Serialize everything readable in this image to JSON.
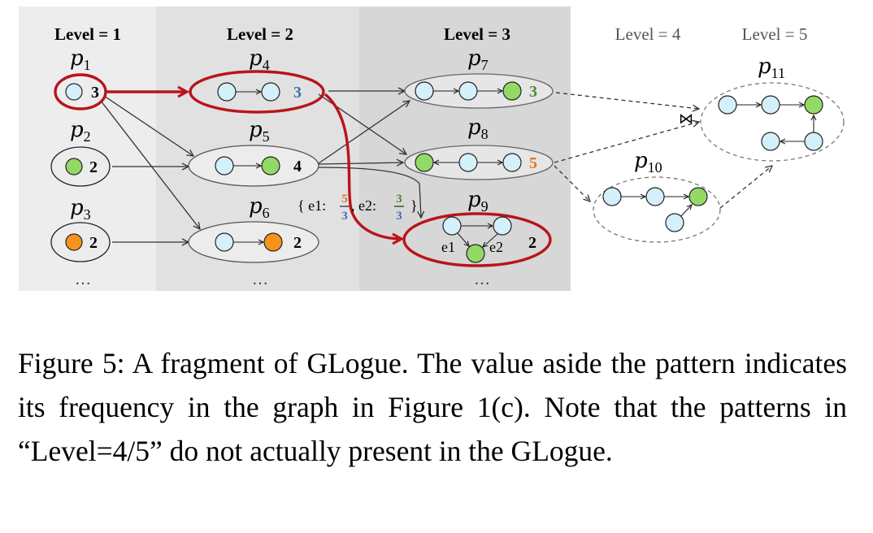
{
  "levels": [
    "Level = 1",
    "Level = 2",
    "Level = 3",
    "Level = 4",
    "Level = 5"
  ],
  "patterns": {
    "p1": {
      "name": "p",
      "sub": "1",
      "freq": "3"
    },
    "p2": {
      "name": "p",
      "sub": "2",
      "freq": "2"
    },
    "p3": {
      "name": "p",
      "sub": "3",
      "freq": "2"
    },
    "p4": {
      "name": "p",
      "sub": "4",
      "freq": "3"
    },
    "p5": {
      "name": "p",
      "sub": "5",
      "freq": "4"
    },
    "p6": {
      "name": "p",
      "sub": "6",
      "freq": "2"
    },
    "p7": {
      "name": "p",
      "sub": "7",
      "freq": "3"
    },
    "p8": {
      "name": "p",
      "sub": "8",
      "freq": "5"
    },
    "p9": {
      "name": "p",
      "sub": "9",
      "freq": "2"
    },
    "p10": {
      "name": "p",
      "sub": "10"
    },
    "p11": {
      "name": "p",
      "sub": "11"
    }
  },
  "edge_labels": {
    "e1": "e1",
    "e2": "e2"
  },
  "annotation": {
    "open": "{ e1:",
    "e1_num": "5",
    "e1_den": "3",
    "sep": ",  e2:",
    "e2_num": "3",
    "e2_den": "3",
    "close": "}"
  },
  "join_symbol": "⋈",
  "ellipsis": "…",
  "colors": {
    "node_light_blue": "#d4f0fa",
    "node_green": "#92d965",
    "node_orange": "#f7921e",
    "highlight_red": "#b8141b",
    "freq_blue": "#3d6db3",
    "freq_green": "#4c8a2e",
    "freq_orange": "#e9711c",
    "band_level1": "#ededed",
    "band_level2": "#e1e1e1",
    "band_level3": "#d7d7d7"
  },
  "caption": "Figure 5:  A fragment of GLogue.  The value aside the pattern indicates its frequency in the graph in Figure 1(c). Note that the patterns in “Level=4/5” do not actually present in the GLogue."
}
